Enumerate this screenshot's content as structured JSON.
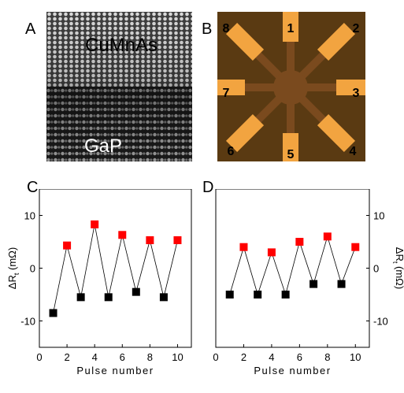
{
  "panels": {
    "a": {
      "letter": "A",
      "top_label": "CuMnAs",
      "bottom_label": "GaP"
    },
    "b": {
      "letter": "B",
      "contacts": [
        "1",
        "2",
        "3",
        "4",
        "5",
        "6",
        "7",
        "8"
      ],
      "colors": {
        "background": "#5a3a12",
        "contact": "#f2a440",
        "cross": "#7a4a1e"
      }
    },
    "c": {
      "letter": "C"
    },
    "d": {
      "letter": "D"
    }
  },
  "chart_data": [
    {
      "type": "scatter",
      "panel": "C",
      "xlabel": "Pulse number",
      "ylabel": "ΔR",
      "ylabel_sub": "t",
      "ylabel_unit": "(mΩ)",
      "xlim": [
        0,
        11
      ],
      "ylim": [
        -15,
        15
      ],
      "xticks": [
        0,
        2,
        4,
        6,
        8,
        10
      ],
      "yticks": [
        -10,
        0,
        10
      ],
      "ytick_side": "left",
      "connect_points": true,
      "series": [
        {
          "color": "#ff0000",
          "marker": "square",
          "x": [
            2,
            4,
            6,
            8,
            10
          ],
          "y": [
            4.3,
            8.3,
            6.3,
            5.3,
            5.3
          ]
        },
        {
          "color": "#000000",
          "marker": "square",
          "x": [
            1,
            3,
            5,
            7,
            9
          ],
          "y": [
            -8.5,
            -5.5,
            -5.5,
            -4.5,
            -5.5
          ]
        }
      ]
    },
    {
      "type": "scatter",
      "panel": "D",
      "xlabel": "Pulse number",
      "ylabel": "ΔR",
      "ylabel_sub": "t",
      "ylabel_unit": "(mΩ)",
      "xlim": [
        0,
        11
      ],
      "ylim": [
        -15,
        15
      ],
      "xticks": [
        0,
        2,
        4,
        6,
        8,
        10
      ],
      "yticks": [
        -10,
        0,
        10
      ],
      "ytick_side": "right",
      "connect_points": true,
      "series": [
        {
          "color": "#ff0000",
          "marker": "square",
          "x": [
            2,
            4,
            6,
            8,
            10
          ],
          "y": [
            4.0,
            3.0,
            5.0,
            6.0,
            4.0
          ]
        },
        {
          "color": "#000000",
          "marker": "square",
          "x": [
            1,
            3,
            5,
            7,
            9
          ],
          "y": [
            -5.0,
            -5.0,
            -5.0,
            -3.0,
            -3.0
          ]
        }
      ]
    }
  ]
}
